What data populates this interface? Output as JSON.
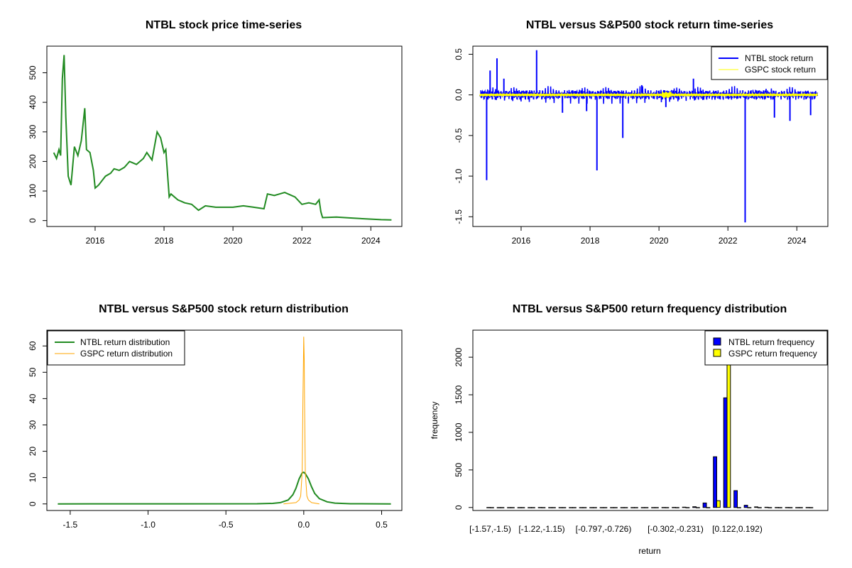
{
  "colors": {
    "price": "#228B22",
    "ntbl_return": "#0000FF",
    "gspc_return": "#FFFF00",
    "ntbl_density": "#228B22",
    "gspc_density": "#FFA500",
    "ntbl_bar": "#0000FF",
    "gspc_bar": "#FFFF00"
  },
  "chart_data": [
    {
      "type": "line",
      "title": "NTBL stock price time-series",
      "xlabel": "",
      "ylabel": "",
      "x_ticks": [
        "2016",
        "2018",
        "2020",
        "2022",
        "2024"
      ],
      "x_tick_values": [
        2016,
        2018,
        2020,
        2022,
        2024
      ],
      "y_ticks": [
        "0",
        "100",
        "200",
        "300",
        "400",
        "500"
      ],
      "y_tick_values": [
        0,
        100,
        200,
        300,
        400,
        500
      ],
      "xlim": [
        2014.6,
        2024.9
      ],
      "ylim": [
        -20,
        590
      ],
      "series": [
        {
          "x": [
            2014.8,
            2014.88,
            2014.95,
            2015.0,
            2015.05,
            2015.1,
            2015.15,
            2015.22,
            2015.3,
            2015.4,
            2015.5,
            2015.6,
            2015.7,
            2015.75,
            2015.85,
            2015.95,
            2016.0,
            2016.1,
            2016.3,
            2016.45,
            2016.55,
            2016.7,
            2016.85,
            2017.0,
            2017.2,
            2017.4,
            2017.5,
            2017.65,
            2017.8,
            2017.9,
            2018.0,
            2018.05,
            2018.15,
            2018.2,
            2018.4,
            2018.6,
            2018.8,
            2019.0,
            2019.2,
            2019.5,
            2019.8,
            2020.0,
            2020.3,
            2020.6,
            2020.9,
            2021.0,
            2021.2,
            2021.5,
            2021.8,
            2022.0,
            2022.2,
            2022.4,
            2022.5,
            2022.55,
            2022.6,
            2023.0,
            2023.5,
            2024.0,
            2024.3,
            2024.6
          ],
          "y": [
            230,
            210,
            240,
            220,
            480,
            560,
            350,
            150,
            120,
            250,
            220,
            270,
            380,
            240,
            230,
            170,
            110,
            120,
            150,
            160,
            175,
            170,
            180,
            200,
            190,
            210,
            230,
            205,
            300,
            280,
            230,
            240,
            80,
            90,
            70,
            60,
            55,
            35,
            50,
            45,
            45,
            45,
            50,
            45,
            40,
            90,
            85,
            95,
            80,
            55,
            60,
            55,
            70,
            30,
            10,
            12,
            8,
            5,
            3,
            2
          ]
        }
      ]
    },
    {
      "type": "line",
      "title": "NTBL versus S&P500 stock return time-series",
      "xlabel": "",
      "ylabel": "",
      "x_ticks": [
        "2016",
        "2018",
        "2020",
        "2022",
        "2024"
      ],
      "x_tick_values": [
        2016,
        2018,
        2020,
        2022,
        2024
      ],
      "y_ticks": [
        "0.5",
        "0.0",
        "-0.5",
        "-1.0",
        "-1.5"
      ],
      "y_tick_values": [
        0.5,
        0.0,
        -0.5,
        -1.0,
        -1.5
      ],
      "xlim": [
        2014.6,
        2024.9
      ],
      "ylim": [
        -1.62,
        0.6
      ],
      "legend": [
        "NTBL stock return",
        "GSPC stock return"
      ],
      "legend_position": "top-right",
      "series": [
        {
          "name": "NTBL stock return",
          "spikes_x": [
            2015.0,
            2015.1,
            2015.3,
            2015.5,
            2016.45,
            2017.2,
            2017.9,
            2018.2,
            2018.95,
            2019.5,
            2020.2,
            2021.0,
            2022.5,
            2023.35,
            2023.8,
            2024.4
          ],
          "spikes_y": [
            -1.05,
            0.3,
            0.45,
            0.2,
            0.55,
            -0.22,
            -0.2,
            -0.93,
            -0.53,
            0.12,
            -0.15,
            0.2,
            -1.57,
            -0.28,
            -0.32,
            -0.25
          ]
        },
        {
          "name": "GSPC stock return",
          "amplitude": 0.03
        }
      ]
    },
    {
      "type": "line",
      "title": "NTBL versus S&P500 stock return distribution",
      "xlabel": "",
      "ylabel": "",
      "x_ticks": [
        "-1.5",
        "-1.0",
        "-0.5",
        "0.0",
        "0.5"
      ],
      "x_tick_values": [
        -1.5,
        -1.0,
        -0.5,
        0.0,
        0.5
      ],
      "y_ticks": [
        "0",
        "10",
        "20",
        "30",
        "40",
        "50",
        "60"
      ],
      "y_tick_values": [
        0,
        10,
        20,
        30,
        40,
        50,
        60
      ],
      "xlim": [
        -1.65,
        0.63
      ],
      "ylim": [
        -2.5,
        66
      ],
      "legend": [
        "NTBL return distribution",
        "GSPC return distribution"
      ],
      "legend_position": "top-left",
      "series": [
        {
          "name": "NTBL return distribution",
          "x": [
            -1.58,
            -0.3,
            -0.2,
            -0.15,
            -0.1,
            -0.07,
            -0.05,
            -0.03,
            -0.01,
            0.0,
            0.01,
            0.03,
            0.05,
            0.07,
            0.1,
            0.15,
            0.2,
            0.3,
            0.56
          ],
          "y": [
            0.0,
            0.05,
            0.2,
            0.5,
            1.5,
            3.5,
            6.0,
            9.5,
            11.8,
            12.0,
            11.5,
            9.5,
            6.5,
            4.0,
            2.0,
            0.8,
            0.3,
            0.05,
            0.0
          ]
        },
        {
          "name": "GSPC return distribution",
          "x": [
            -0.13,
            -0.05,
            -0.03,
            -0.02,
            -0.01,
            -0.005,
            0.0,
            0.003,
            0.005,
            0.01,
            0.02,
            0.03,
            0.05,
            0.1
          ],
          "y": [
            0.0,
            0.5,
            1.5,
            3.0,
            12.0,
            40.0,
            63.5,
            55.0,
            40.0,
            12.0,
            3.0,
            1.5,
            0.5,
            0.0
          ]
        }
      ]
    },
    {
      "type": "bar",
      "title": "NTBL versus S&P500 return frequency distribution",
      "xlabel": "return",
      "ylabel": "frequency",
      "x_tick_labels": [
        "[-1.57,-1.5)",
        "[-1.22,-1.15)",
        "[-0.797,-0.726)",
        "[-0.302,-0.231)",
        "[0.122,0.192)"
      ],
      "x_tick_bins": [
        0,
        5,
        11,
        18,
        24
      ],
      "y_ticks": [
        "0",
        "500",
        "1000",
        "1500",
        "2000"
      ],
      "y_tick_values": [
        0,
        500,
        1000,
        1500,
        2000
      ],
      "ylim": [
        -40,
        2360
      ],
      "legend": [
        "NTBL return frequency",
        "GSPC return frequency"
      ],
      "legend_position": "top-right",
      "series": [
        {
          "name": "NTBL return frequency",
          "values": [
            1,
            0,
            0,
            0,
            0,
            1,
            0,
            0,
            0,
            0,
            0,
            0,
            0,
            0,
            0,
            0,
            0,
            1,
            2,
            4,
            10,
            60,
            675,
            1460,
            225,
            30,
            8,
            3,
            1,
            1,
            0,
            1
          ]
        },
        {
          "name": "GSPC return frequency",
          "values": [
            0,
            0,
            0,
            0,
            0,
            0,
            0,
            0,
            0,
            0,
            0,
            0,
            0,
            0,
            0,
            0,
            0,
            0,
            0,
            0,
            0,
            0,
            90,
            2350,
            0,
            0,
            0,
            0,
            0,
            0,
            0,
            0
          ]
        }
      ]
    }
  ]
}
